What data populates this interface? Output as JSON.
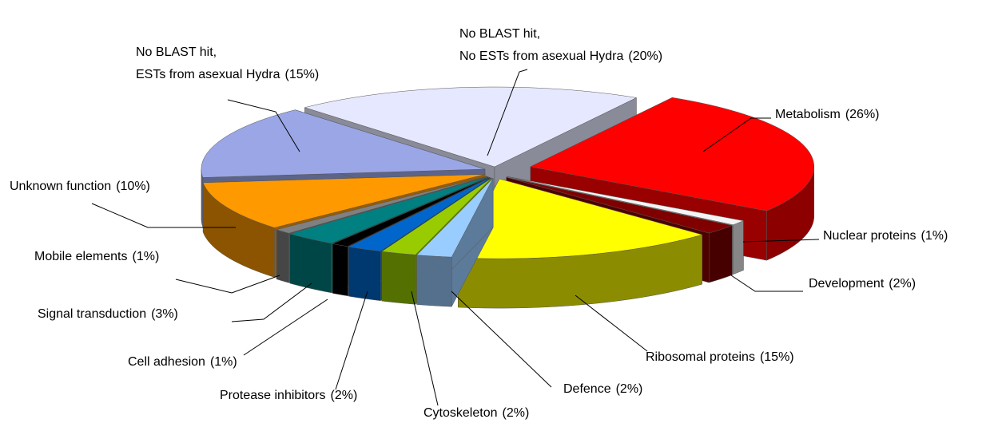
{
  "chart_data": {
    "type": "pie",
    "categories": [
      "Metabolism",
      "Nuclear proteins",
      "Development",
      "Ribosomal proteins",
      "Defence",
      "Cytoskeleton",
      "Protease inhibitors",
      "Cell adhesion",
      "Signal transduction",
      "Mobile elements",
      "Unknown function",
      "No BLAST hit,\nESTs from asexual Hydra",
      "No BLAST hit,\nNo ESTs from asexual Hydra"
    ],
    "values": [
      26,
      1,
      2,
      15,
      2,
      2,
      2,
      1,
      3,
      1,
      10,
      15,
      20
    ],
    "value_labels": [
      "(26%)",
      "(1%)",
      "(2%)",
      "(15%)",
      "(2%)",
      "(2%)",
      "(2%)",
      "(1%)",
      "(3%)",
      "(1%)",
      "(10%)",
      "(15%)",
      "(20%)"
    ],
    "colors": [
      "#ff0000",
      "#f4f4f4",
      "#800000",
      "#ffff00",
      "#99ccff",
      "#99cc00",
      "#0066cc",
      "#000000",
      "#008080",
      "#808080",
      "#ff9900",
      "#9aa6e6",
      "#e6e8ff"
    ]
  }
}
